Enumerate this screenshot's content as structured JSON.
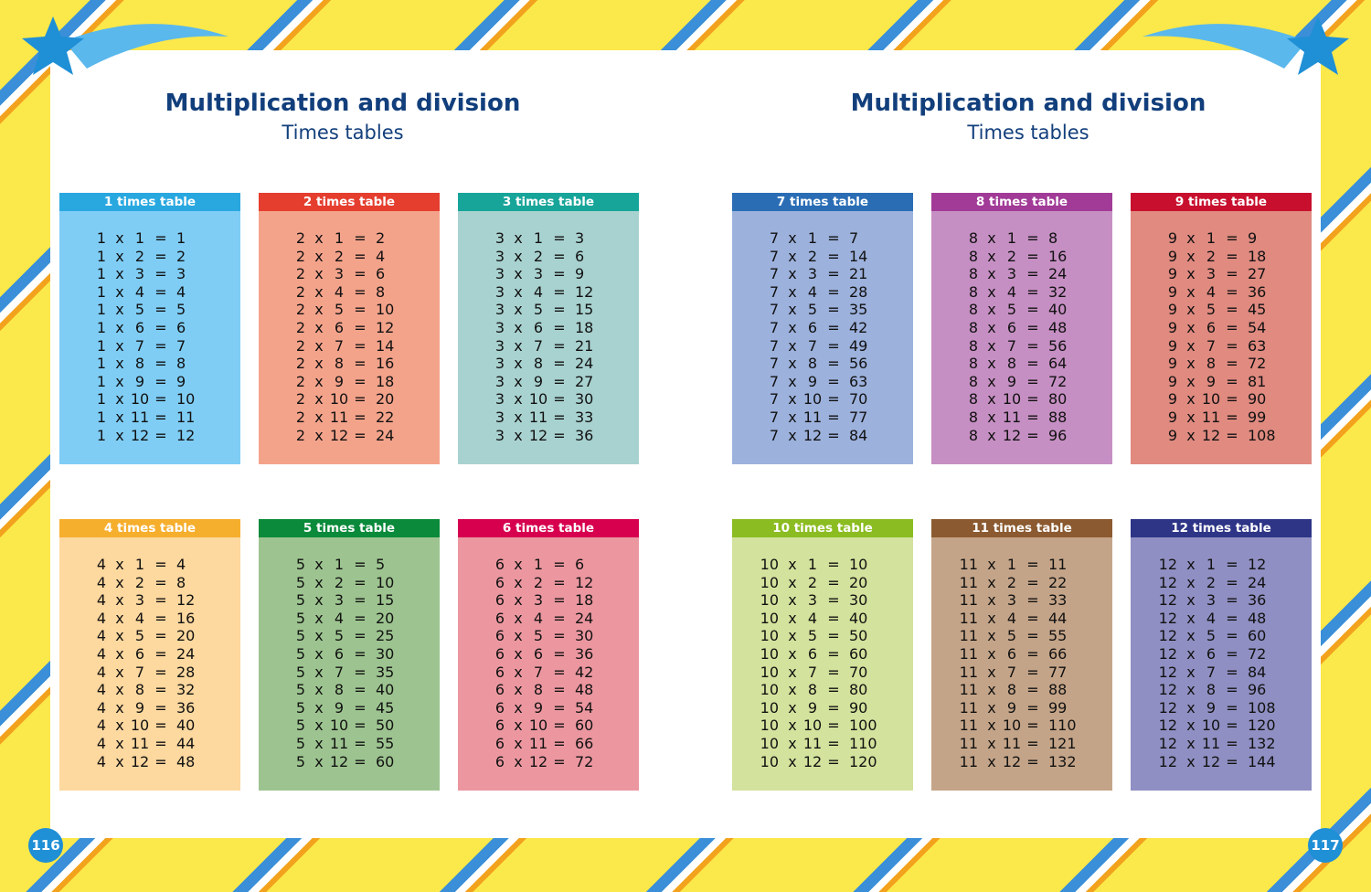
{
  "pages": [
    {
      "title": "Multiplication and division",
      "subtitle": "Times tables",
      "page_number": "116",
      "tables": [
        {
          "header": "1 times table",
          "header_color": "#29a8e0",
          "body_color": "#7fcdf5",
          "rows": [
            [
              1,
              "x",
              1,
              "=",
              1
            ],
            [
              1,
              "x",
              2,
              "=",
              2
            ],
            [
              1,
              "x",
              3,
              "=",
              3
            ],
            [
              1,
              "x",
              4,
              "=",
              4
            ],
            [
              1,
              "x",
              5,
              "=",
              5
            ],
            [
              1,
              "x",
              6,
              "=",
              6
            ],
            [
              1,
              "x",
              7,
              "=",
              7
            ],
            [
              1,
              "x",
              8,
              "=",
              8
            ],
            [
              1,
              "x",
              9,
              "=",
              9
            ],
            [
              1,
              "x",
              10,
              "=",
              10
            ],
            [
              1,
              "x",
              11,
              "=",
              11
            ],
            [
              1,
              "x",
              12,
              "=",
              12
            ]
          ]
        },
        {
          "header": "2 times table",
          "header_color": "#e53e2f",
          "body_color": "#f4a38b",
          "rows": [
            [
              2,
              "x",
              1,
              "=",
              2
            ],
            [
              2,
              "x",
              2,
              "=",
              4
            ],
            [
              2,
              "x",
              3,
              "=",
              6
            ],
            [
              2,
              "x",
              4,
              "=",
              8
            ],
            [
              2,
              "x",
              5,
              "=",
              10
            ],
            [
              2,
              "x",
              6,
              "=",
              12
            ],
            [
              2,
              "x",
              7,
              "=",
              14
            ],
            [
              2,
              "x",
              8,
              "=",
              16
            ],
            [
              2,
              "x",
              9,
              "=",
              18
            ],
            [
              2,
              "x",
              10,
              "=",
              20
            ],
            [
              2,
              "x",
              11,
              "=",
              22
            ],
            [
              2,
              "x",
              12,
              "=",
              24
            ]
          ]
        },
        {
          "header": "3 times table",
          "header_color": "#17a59a",
          "body_color": "#a8d2d0",
          "rows": [
            [
              3,
              "x",
              1,
              "=",
              3
            ],
            [
              3,
              "x",
              2,
              "=",
              6
            ],
            [
              3,
              "x",
              3,
              "=",
              9
            ],
            [
              3,
              "x",
              4,
              "=",
              12
            ],
            [
              3,
              "x",
              5,
              "=",
              15
            ],
            [
              3,
              "x",
              6,
              "=",
              18
            ],
            [
              3,
              "x",
              7,
              "=",
              21
            ],
            [
              3,
              "x",
              8,
              "=",
              24
            ],
            [
              3,
              "x",
              9,
              "=",
              27
            ],
            [
              3,
              "x",
              10,
              "=",
              30
            ],
            [
              3,
              "x",
              11,
              "=",
              33
            ],
            [
              3,
              "x",
              12,
              "=",
              36
            ]
          ]
        },
        {
          "header": "4 times table",
          "header_color": "#f6ae2d",
          "body_color": "#fdd89f",
          "rows": [
            [
              4,
              "x",
              1,
              "=",
              4
            ],
            [
              4,
              "x",
              2,
              "=",
              8
            ],
            [
              4,
              "x",
              3,
              "=",
              12
            ],
            [
              4,
              "x",
              4,
              "=",
              16
            ],
            [
              4,
              "x",
              5,
              "=",
              20
            ],
            [
              4,
              "x",
              6,
              "=",
              24
            ],
            [
              4,
              "x",
              7,
              "=",
              28
            ],
            [
              4,
              "x",
              8,
              "=",
              32
            ],
            [
              4,
              "x",
              9,
              "=",
              36
            ],
            [
              4,
              "x",
              10,
              "=",
              40
            ],
            [
              4,
              "x",
              11,
              "=",
              44
            ],
            [
              4,
              "x",
              12,
              "=",
              48
            ]
          ]
        },
        {
          "header": "5 times table",
          "header_color": "#0a8a3a",
          "body_color": "#9dc490",
          "rows": [
            [
              5,
              "x",
              1,
              "=",
              5
            ],
            [
              5,
              "x",
              2,
              "=",
              10
            ],
            [
              5,
              "x",
              3,
              "=",
              15
            ],
            [
              5,
              "x",
              4,
              "=",
              20
            ],
            [
              5,
              "x",
              5,
              "=",
              25
            ],
            [
              5,
              "x",
              6,
              "=",
              30
            ],
            [
              5,
              "x",
              7,
              "=",
              35
            ],
            [
              5,
              "x",
              8,
              "=",
              40
            ],
            [
              5,
              "x",
              9,
              "=",
              45
            ],
            [
              5,
              "x",
              10,
              "=",
              50
            ],
            [
              5,
              "x",
              11,
              "=",
              55
            ],
            [
              5,
              "x",
              12,
              "=",
              60
            ]
          ]
        },
        {
          "header": "6 times table",
          "header_color": "#d6004f",
          "body_color": "#ec97a0",
          "rows": [
            [
              6,
              "x",
              1,
              "=",
              6
            ],
            [
              6,
              "x",
              2,
              "=",
              12
            ],
            [
              6,
              "x",
              3,
              "=",
              18
            ],
            [
              6,
              "x",
              4,
              "=",
              24
            ],
            [
              6,
              "x",
              5,
              "=",
              30
            ],
            [
              6,
              "x",
              6,
              "=",
              36
            ],
            [
              6,
              "x",
              7,
              "=",
              42
            ],
            [
              6,
              "x",
              8,
              "=",
              48
            ],
            [
              6,
              "x",
              9,
              "=",
              54
            ],
            [
              6,
              "x",
              10,
              "=",
              60
            ],
            [
              6,
              "x",
              11,
              "=",
              66
            ],
            [
              6,
              "x",
              12,
              "=",
              72
            ]
          ]
        }
      ]
    },
    {
      "title": "Multiplication and division",
      "subtitle": "Times tables",
      "page_number": "117",
      "tables": [
        {
          "header": "7 times table",
          "header_color": "#2a6db5",
          "body_color": "#9cb1dc",
          "rows": [
            [
              7,
              "x",
              1,
              "=",
              7
            ],
            [
              7,
              "x",
              2,
              "=",
              14
            ],
            [
              7,
              "x",
              3,
              "=",
              21
            ],
            [
              7,
              "x",
              4,
              "=",
              28
            ],
            [
              7,
              "x",
              5,
              "=",
              35
            ],
            [
              7,
              "x",
              6,
              "=",
              42
            ],
            [
              7,
              "x",
              7,
              "=",
              49
            ],
            [
              7,
              "x",
              8,
              "=",
              56
            ],
            [
              7,
              "x",
              9,
              "=",
              63
            ],
            [
              7,
              "x",
              10,
              "=",
              70
            ],
            [
              7,
              "x",
              11,
              "=",
              77
            ],
            [
              7,
              "x",
              12,
              "=",
              84
            ]
          ]
        },
        {
          "header": "8 times table",
          "header_color": "#a13b97",
          "body_color": "#c68fc3",
          "rows": [
            [
              8,
              "x",
              1,
              "=",
              8
            ],
            [
              8,
              "x",
              2,
              "=",
              16
            ],
            [
              8,
              "x",
              3,
              "=",
              24
            ],
            [
              8,
              "x",
              4,
              "=",
              32
            ],
            [
              8,
              "x",
              5,
              "=",
              40
            ],
            [
              8,
              "x",
              6,
              "=",
              48
            ],
            [
              8,
              "x",
              7,
              "=",
              56
            ],
            [
              8,
              "x",
              8,
              "=",
              64
            ],
            [
              8,
              "x",
              9,
              "=",
              72
            ],
            [
              8,
              "x",
              10,
              "=",
              80
            ],
            [
              8,
              "x",
              11,
              "=",
              88
            ],
            [
              8,
              "x",
              12,
              "=",
              96
            ]
          ]
        },
        {
          "header": "9 times table",
          "header_color": "#c8102e",
          "body_color": "#e08a80",
          "rows": [
            [
              9,
              "x",
              1,
              "=",
              9
            ],
            [
              9,
              "x",
              2,
              "=",
              18
            ],
            [
              9,
              "x",
              3,
              "=",
              27
            ],
            [
              9,
              "x",
              4,
              "=",
              36
            ],
            [
              9,
              "x",
              5,
              "=",
              45
            ],
            [
              9,
              "x",
              6,
              "=",
              54
            ],
            [
              9,
              "x",
              7,
              "=",
              63
            ],
            [
              9,
              "x",
              8,
              "=",
              72
            ],
            [
              9,
              "x",
              9,
              "=",
              81
            ],
            [
              9,
              "x",
              10,
              "=",
              90
            ],
            [
              9,
              "x",
              11,
              "=",
              99
            ],
            [
              9,
              "x",
              12,
              "=",
              108
            ]
          ]
        },
        {
          "header": "10 times table",
          "header_color": "#8bbc21",
          "body_color": "#d3e29c",
          "rows": [
            [
              10,
              "x",
              1,
              "=",
              10
            ],
            [
              10,
              "x",
              2,
              "=",
              20
            ],
            [
              10,
              "x",
              3,
              "=",
              30
            ],
            [
              10,
              "x",
              4,
              "=",
              40
            ],
            [
              10,
              "x",
              5,
              "=",
              50
            ],
            [
              10,
              "x",
              6,
              "=",
              60
            ],
            [
              10,
              "x",
              7,
              "=",
              70
            ],
            [
              10,
              "x",
              8,
              "=",
              80
            ],
            [
              10,
              "x",
              9,
              "=",
              90
            ],
            [
              10,
              "x",
              10,
              "=",
              100
            ],
            [
              10,
              "x",
              11,
              "=",
              110
            ],
            [
              10,
              "x",
              12,
              "=",
              120
            ]
          ]
        },
        {
          "header": "11 times table",
          "header_color": "#8b5a30",
          "body_color": "#c4a488",
          "rows": [
            [
              11,
              "x",
              1,
              "=",
              11
            ],
            [
              11,
              "x",
              2,
              "=",
              22
            ],
            [
              11,
              "x",
              3,
              "=",
              33
            ],
            [
              11,
              "x",
              4,
              "=",
              44
            ],
            [
              11,
              "x",
              5,
              "=",
              55
            ],
            [
              11,
              "x",
              6,
              "=",
              66
            ],
            [
              11,
              "x",
              7,
              "=",
              77
            ],
            [
              11,
              "x",
              8,
              "=",
              88
            ],
            [
              11,
              "x",
              9,
              "=",
              99
            ],
            [
              11,
              "x",
              10,
              "=",
              110
            ],
            [
              11,
              "x",
              11,
              "=",
              121
            ],
            [
              11,
              "x",
              12,
              "=",
              132
            ]
          ]
        },
        {
          "header": "12 times table",
          "header_color": "#2e3586",
          "body_color": "#8f8fc3",
          "rows": [
            [
              12,
              "x",
              1,
              "=",
              12
            ],
            [
              12,
              "x",
              2,
              "=",
              24
            ],
            [
              12,
              "x",
              3,
              "=",
              36
            ],
            [
              12,
              "x",
              4,
              "=",
              48
            ],
            [
              12,
              "x",
              5,
              "=",
              60
            ],
            [
              12,
              "x",
              6,
              "=",
              72
            ],
            [
              12,
              "x",
              7,
              "=",
              84
            ],
            [
              12,
              "x",
              8,
              "=",
              96
            ],
            [
              12,
              "x",
              9,
              "=",
              108
            ],
            [
              12,
              "x",
              10,
              "=",
              120
            ],
            [
              12,
              "x",
              11,
              "=",
              132
            ],
            [
              12,
              "x",
              12,
              "=",
              144
            ]
          ]
        }
      ]
    }
  ]
}
